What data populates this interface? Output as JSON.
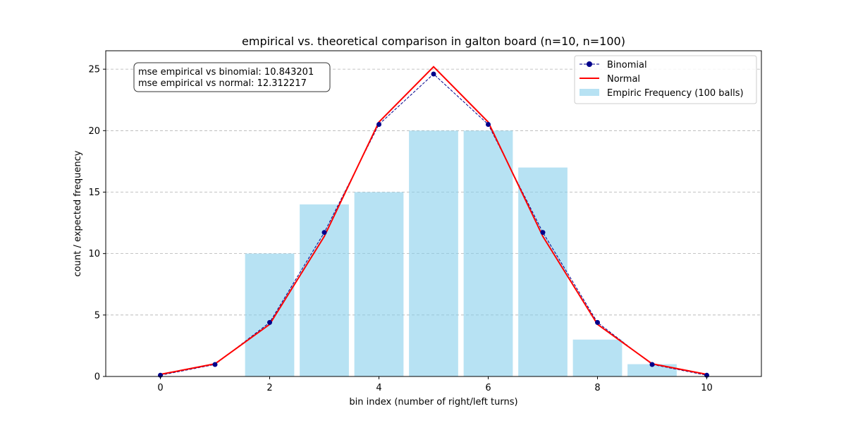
{
  "chart_data": {
    "type": "bar",
    "title": "empirical vs. theoretical comparison in galton board (n=10, n=100)",
    "xlabel": "bin index (number of right/left turns)",
    "ylabel": "count / expected frequency",
    "xlim": [
      -1,
      11
    ],
    "ylim": [
      0,
      26.5
    ],
    "xticks": [
      0,
      2,
      4,
      6,
      8,
      10
    ],
    "yticks": [
      0,
      5,
      10,
      15,
      20,
      25
    ],
    "grid": "horizontal dashed",
    "legend_position": "top-right",
    "x": [
      0,
      1,
      2,
      3,
      4,
      5,
      6,
      7,
      8,
      9,
      10
    ],
    "series": [
      {
        "name": "Empiric Frequency (100 balls)",
        "kind": "bar",
        "color": "#87ceeb",
        "values": [
          0,
          0,
          10,
          14,
          15,
          20,
          20,
          17,
          3,
          1,
          0
        ]
      },
      {
        "name": "Binomial",
        "kind": "line-dashed-markers",
        "color": "#00008b",
        "values": [
          0.098,
          0.977,
          4.395,
          11.719,
          20.508,
          24.609,
          20.508,
          11.719,
          4.395,
          0.977,
          0.098
        ]
      },
      {
        "name": "Normal",
        "kind": "line",
        "color": "#ff0000",
        "values": [
          0.17,
          1.03,
          4.24,
          11.4,
          20.7,
          25.2,
          20.7,
          11.4,
          4.24,
          1.03,
          0.17
        ]
      }
    ],
    "annotation": {
      "line1": "mse empirical vs binomial: 10.843201",
      "line2": "mse empirical vs normal: 12.312217"
    }
  }
}
